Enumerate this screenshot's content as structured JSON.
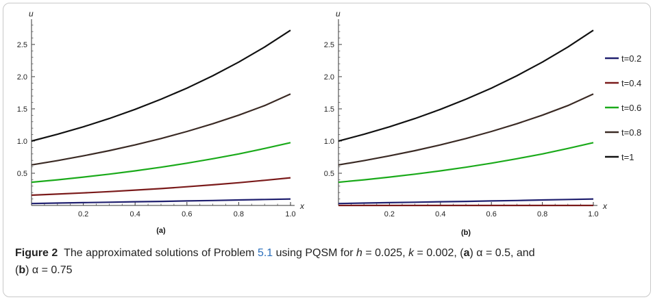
{
  "caption": {
    "figure_label": "Figure 2",
    "text_1": "The approximated solutions of Problem ",
    "ref": "5.1",
    "text_2": " using PQSM for ",
    "h_var": "h",
    "h_val": " = 0.025, ",
    "k_var": "k",
    "k_val": " = 0.002, (",
    "a_label": "a",
    "a_part": ") α = 0.5, and",
    "open_b": "(",
    "b_label": "b",
    "b_part": ") α = 0.75"
  },
  "chart_data": [
    {
      "type": "line",
      "panel_label": "(a)",
      "xlabel": "x",
      "ylabel": "u",
      "xlim": [
        0,
        1.0
      ],
      "ylim": [
        0,
        2.85
      ],
      "xticks": [
        "0.2",
        "0.4",
        "0.6",
        "0.8",
        "1.0"
      ],
      "yticks": [
        "0.5",
        "1.0",
        "1.5",
        "2.0",
        "2.5"
      ],
      "x": [
        0,
        0.1,
        0.2,
        0.3,
        0.4,
        0.5,
        0.6,
        0.7,
        0.8,
        0.9,
        1.0
      ],
      "series": [
        {
          "name": "t=0.2",
          "color": "#1f1f6e",
          "values": [
            0.03,
            0.037,
            0.044,
            0.05,
            0.057,
            0.063,
            0.07,
            0.077,
            0.085,
            0.093,
            0.1
          ]
        },
        {
          "name": "t=0.4",
          "color": "#7a1a1a",
          "values": [
            0.16,
            0.177,
            0.195,
            0.215,
            0.238,
            0.262,
            0.29,
            0.32,
            0.353,
            0.39,
            0.43
          ]
        },
        {
          "name": "t=0.6",
          "color": "#1aaa1a",
          "values": [
            0.36,
            0.398,
            0.44,
            0.486,
            0.537,
            0.593,
            0.656,
            0.725,
            0.8,
            0.885,
            0.975
          ]
        },
        {
          "name": "t=0.8",
          "color": "#3a2a24",
          "values": [
            0.63,
            0.696,
            0.77,
            0.851,
            0.94,
            1.039,
            1.148,
            1.269,
            1.402,
            1.55,
            1.73
          ]
        },
        {
          "name": "t=1",
          "color": "#111111",
          "values": [
            1.0,
            1.105,
            1.221,
            1.35,
            1.492,
            1.649,
            1.822,
            2.014,
            2.226,
            2.46,
            2.72
          ]
        }
      ]
    },
    {
      "type": "line",
      "panel_label": "(b)",
      "xlabel": "x",
      "ylabel": "u",
      "xlim": [
        0,
        1.0
      ],
      "ylim": [
        0,
        2.85
      ],
      "xticks": [
        "0.2",
        "0.4",
        "0.6",
        "0.8",
        "1.0"
      ],
      "yticks": [
        "0.5",
        "1.0",
        "1.5",
        "2.0",
        "2.5"
      ],
      "legend": "right",
      "x": [
        0,
        0.1,
        0.2,
        0.3,
        0.4,
        0.5,
        0.6,
        0.7,
        0.8,
        0.9,
        1.0
      ],
      "series": [
        {
          "name": "t=0.2",
          "color": "#1f1f6e",
          "values": [
            0.03,
            0.037,
            0.044,
            0.05,
            0.057,
            0.063,
            0.07,
            0.077,
            0.085,
            0.093,
            0.1
          ]
        },
        {
          "name": "t=0.4",
          "color": "#7a1a1a",
          "values": [
            0.0,
            0.0,
            0.0,
            0.0,
            0.0,
            0.0,
            0.0,
            0.0,
            0.0,
            0.0,
            0.0
          ]
        },
        {
          "name": "t=0.6",
          "color": "#1aaa1a",
          "values": [
            0.36,
            0.398,
            0.44,
            0.486,
            0.537,
            0.593,
            0.656,
            0.725,
            0.8,
            0.885,
            0.975
          ]
        },
        {
          "name": "t=0.8",
          "color": "#3a2a24",
          "values": [
            0.63,
            0.696,
            0.77,
            0.851,
            0.94,
            1.039,
            1.148,
            1.269,
            1.402,
            1.55,
            1.73
          ]
        },
        {
          "name": "t=1",
          "color": "#111111",
          "values": [
            1.0,
            1.105,
            1.221,
            1.35,
            1.492,
            1.649,
            1.822,
            2.014,
            2.226,
            2.46,
            2.72
          ]
        }
      ]
    }
  ]
}
